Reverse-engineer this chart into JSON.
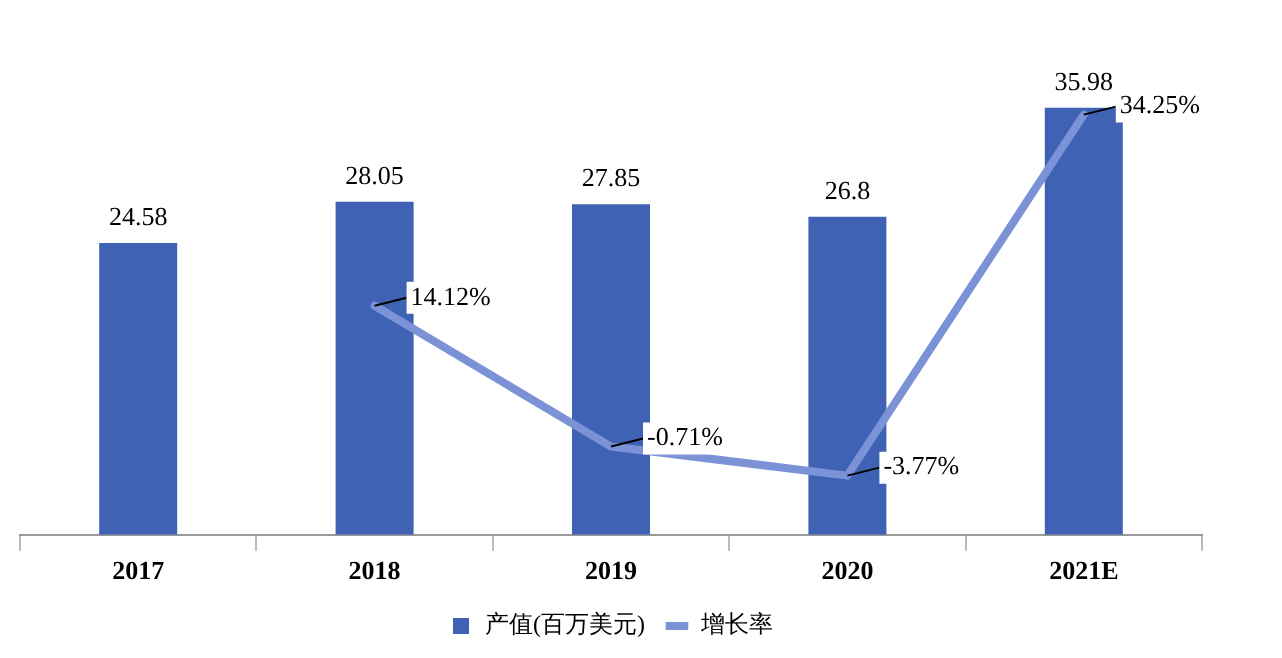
{
  "chart_data": {
    "type": "bar",
    "categories": [
      "2017",
      "2018",
      "2019",
      "2020",
      "2021E"
    ],
    "series": [
      {
        "name": "产值(百万美元)",
        "color": "#4062b4",
        "values": [
          24.58,
          28.05,
          27.85,
          26.8,
          35.98
        ],
        "value_labels": [
          "24.58",
          "28.05",
          "27.85",
          "26.8",
          "35.98"
        ]
      },
      {
        "name": "增长率",
        "type": "line",
        "axis": "y2",
        "color": "#7b93d6",
        "values": [
          null,
          14.12,
          -0.71,
          -3.77,
          34.25
        ],
        "value_labels": [
          null,
          "14.12%",
          "-0.71%",
          "-3.77%",
          "34.25%"
        ]
      }
    ],
    "legend": "bottom",
    "grid": false,
    "marker": "none",
    "line_style": "solid",
    "tick_labels": "x"
  }
}
